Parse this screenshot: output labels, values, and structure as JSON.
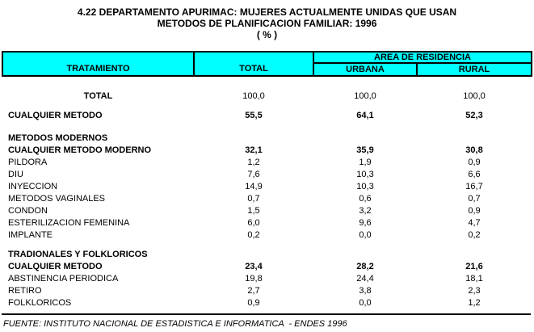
{
  "title": {
    "line1": "4.22 DEPARTAMENTO APURIMAC: MUJERES ACTUALMENTE UNIDAS QUE USAN",
    "line2": "METODOS DE PLANIFICACION FAMILIAR: 1996",
    "line3": "( % )"
  },
  "table": {
    "header": {
      "tratamiento": "TRATAMIENTO",
      "total": "TOTAL",
      "area_group": "AREA DE RESIDENCIA",
      "urbana": "URBANA",
      "rural": "RURAL"
    },
    "rows": [
      {
        "type": "spacer",
        "height": 16
      },
      {
        "type": "data",
        "label": "TOTAL",
        "bold": true,
        "center": true,
        "values_bold": false,
        "total": "100,0",
        "urbana": "100,0",
        "rural": "100,0"
      },
      {
        "type": "spacer",
        "height": 9
      },
      {
        "type": "data",
        "label": "CUALQUIER METODO",
        "bold": true,
        "values_bold": true,
        "total": "55,5",
        "urbana": "64,1",
        "rural": "52,3"
      },
      {
        "type": "spacer",
        "height": 13
      },
      {
        "type": "data",
        "label": "METODOS MODERNOS",
        "bold": true,
        "values_bold": false,
        "total": "",
        "urbana": "",
        "rural": ""
      },
      {
        "type": "data",
        "label": "CUALQUIER METODO MODERNO",
        "bold": true,
        "values_bold": true,
        "total": "32,1",
        "urbana": "35,9",
        "rural": "30,8"
      },
      {
        "type": "data",
        "label": "PILDORA",
        "bold": false,
        "values_bold": false,
        "total": "1,2",
        "urbana": "1,9",
        "rural": "0,9"
      },
      {
        "type": "data",
        "label": "DIU",
        "bold": false,
        "values_bold": false,
        "total": "7,6",
        "urbana": "10,3",
        "rural": "6,6"
      },
      {
        "type": "data",
        "label": "INYECCION",
        "bold": false,
        "values_bold": false,
        "total": "14,9",
        "urbana": "10,3",
        "rural": "16,7"
      },
      {
        "type": "data",
        "label": "METODOS VAGINALES",
        "bold": false,
        "values_bold": false,
        "total": "0,7",
        "urbana": "0,6",
        "rural": "0,7"
      },
      {
        "type": "data",
        "label": "CONDON",
        "bold": false,
        "values_bold": false,
        "total": "1,5",
        "urbana": "3,2",
        "rural": "0,9"
      },
      {
        "type": "data",
        "label": "ESTERILIZACION FEMENINA",
        "bold": false,
        "values_bold": false,
        "total": "6,0",
        "urbana": "9,6",
        "rural": "4,7"
      },
      {
        "type": "data",
        "label": "IMPLANTE",
        "bold": false,
        "values_bold": false,
        "total": "0,2",
        "urbana": "0,0",
        "rural": "0,2"
      },
      {
        "type": "spacer",
        "height": 9
      },
      {
        "type": "data",
        "label": "TRADIONALES Y FOLKLORICOS",
        "bold": true,
        "values_bold": false,
        "total": "",
        "urbana": "",
        "rural": ""
      },
      {
        "type": "data",
        "label": "CUALQUIER METODO",
        "bold": true,
        "values_bold": true,
        "total": "23,4",
        "urbana": "28,2",
        "rural": "21,6"
      },
      {
        "type": "data",
        "label": "ABSTINENCIA PERIODICA",
        "bold": false,
        "values_bold": false,
        "total": "19,8",
        "urbana": "24,4",
        "rural": "18,1"
      },
      {
        "type": "data",
        "label": "RETIRO",
        "bold": false,
        "values_bold": false,
        "total": "2,7",
        "urbana": "3,8",
        "rural": "2,3"
      },
      {
        "type": "data",
        "label": "FOLKLORICOS",
        "bold": false,
        "values_bold": false,
        "total": "0,9",
        "urbana": "0,0",
        "rural": "1,2"
      }
    ]
  },
  "footer": {
    "source": "FUENTE: INSTITUTO NACIONAL DE ESTADISTICA E INFORMATICA  - ENDES 1996"
  },
  "colors": {
    "header_bg": "#00FFFF",
    "border": "#000000",
    "text": "#000000",
    "page_bg": "#FFFFFF"
  }
}
